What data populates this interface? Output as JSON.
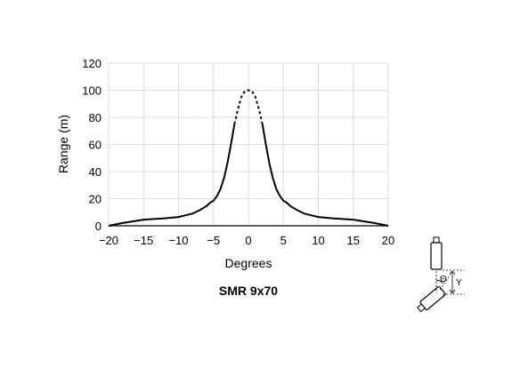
{
  "chart_data": {
    "type": "line",
    "title": "SMR 9x70",
    "xlabel": "Degrees",
    "ylabel": "Range (m)",
    "xlim": [
      -20,
      20
    ],
    "ylim": [
      0,
      120
    ],
    "xticks": [
      -20,
      -15,
      -10,
      -5,
      0,
      5,
      10,
      15,
      20
    ],
    "yticks": [
      0,
      20,
      40,
      60,
      80,
      100,
      120
    ],
    "grid": true,
    "series": [
      {
        "style": "solid",
        "x": [
          -20,
          -18,
          -15,
          -12,
          -10,
          -8,
          -7,
          -6,
          -5.5,
          -5,
          -4.5,
          -4,
          -3.5,
          -3,
          -2.5,
          -2
        ],
        "y": [
          0,
          2,
          4.5,
          5.5,
          6.5,
          9,
          11.5,
          14.5,
          17,
          18.5,
          22,
          27,
          35,
          46,
          60,
          75
        ]
      },
      {
        "style": "dashed",
        "x": [
          -2,
          -1.5,
          -1,
          -0.5,
          0,
          0.5,
          1,
          1.5,
          2
        ],
        "y": [
          75,
          86,
          95,
          99.5,
          100,
          99.5,
          95,
          86,
          75
        ]
      },
      {
        "style": "solid",
        "x": [
          2,
          2.5,
          3,
          3.5,
          4,
          4.5,
          5,
          5.5,
          6,
          7,
          8,
          10,
          12,
          15,
          18,
          20
        ],
        "y": [
          75,
          60,
          46,
          35,
          27,
          22,
          18.5,
          17,
          14.5,
          11.5,
          9,
          6.5,
          5.5,
          4.5,
          2,
          0
        ]
      }
    ]
  },
  "diagram": {
    "angle_symbol": "Θ",
    "distance_symbol": "Y"
  }
}
